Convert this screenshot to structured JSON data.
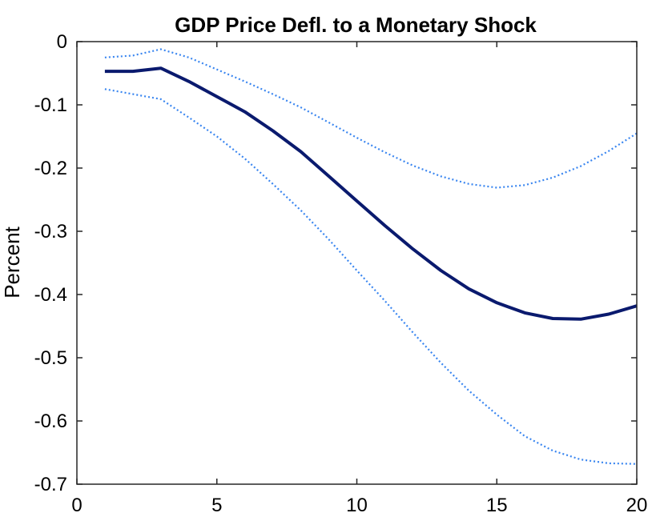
{
  "chart_data": {
    "type": "line",
    "title": "GDP Price Defl. to a Monetary Shock",
    "xlabel": "",
    "ylabel": "Percent",
    "xlim": [
      0,
      20
    ],
    "ylim": [
      -0.7,
      0
    ],
    "xticks": [
      "0",
      "5",
      "10",
      "15",
      "20"
    ],
    "yticks": [
      "0",
      "-0.1",
      "-0.2",
      "-0.3",
      "-0.4",
      "-0.5",
      "-0.6",
      "-0.7"
    ],
    "grid": false,
    "legend": "none",
    "x": [
      1,
      2,
      3,
      4,
      5,
      6,
      7,
      8,
      9,
      10,
      11,
      12,
      13,
      14,
      15,
      16,
      17,
      18,
      19,
      20
    ],
    "series": [
      {
        "role": "response",
        "style": "solid",
        "color": "#0a1a6e",
        "values": [
          -0.047,
          -0.047,
          -0.042,
          -0.063,
          -0.087,
          -0.111,
          -0.141,
          -0.174,
          -0.213,
          -0.252,
          -0.291,
          -0.328,
          -0.362,
          -0.391,
          -0.413,
          -0.429,
          -0.438,
          -0.439,
          -0.431,
          -0.418
        ]
      },
      {
        "role": "upper-band",
        "style": "dotted",
        "color": "#3a86f0",
        "values": [
          -0.025,
          -0.022,
          -0.012,
          -0.025,
          -0.044,
          -0.063,
          -0.083,
          -0.104,
          -0.128,
          -0.152,
          -0.175,
          -0.196,
          -0.213,
          -0.225,
          -0.231,
          -0.227,
          -0.215,
          -0.197,
          -0.173,
          -0.145
        ]
      },
      {
        "role": "lower-band",
        "style": "dotted",
        "color": "#3a86f0",
        "values": [
          -0.075,
          -0.083,
          -0.091,
          -0.12,
          -0.15,
          -0.185,
          -0.225,
          -0.267,
          -0.313,
          -0.362,
          -0.41,
          -0.46,
          -0.508,
          -0.552,
          -0.59,
          -0.624,
          -0.647,
          -0.661,
          -0.667,
          -0.668
        ]
      }
    ]
  }
}
